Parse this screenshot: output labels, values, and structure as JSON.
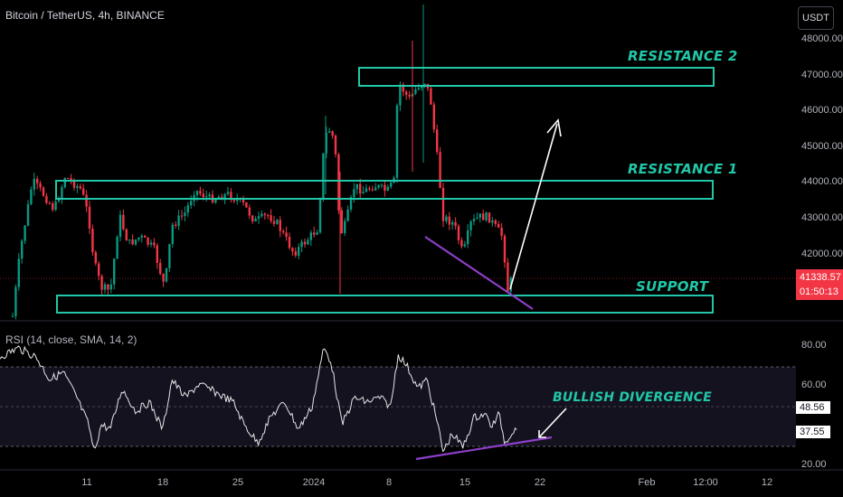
{
  "header": {
    "title": "Bitcoin / TetherUS, 4h, BINANCE",
    "currency_button": "USDT"
  },
  "price_axis": {
    "labels": [
      "48000.00",
      "47000.00",
      "46000.00",
      "45000.00",
      "44000.00",
      "43000.00",
      "42000.00"
    ],
    "current_price": "41338.57",
    "countdown": "01:50:13",
    "current_color": "#f23645"
  },
  "rsi_panel": {
    "title": "RSI (14, close, SMA, 14, 2)",
    "axis_labels": [
      "80.00",
      "60.00",
      "20.00"
    ],
    "rsi_value": "48.56",
    "ma_value": "37.55"
  },
  "time_axis": {
    "labels": [
      "11",
      "18",
      "25",
      "2024",
      "8",
      "15",
      "22",
      "Feb",
      "12:00",
      "12"
    ]
  },
  "annotations": {
    "resistance2": "RESISTANCE 2",
    "resistance1": "RESISTANCE 1",
    "support": "SUPPORT",
    "divergence": "BULLISH DIVERGENCE"
  },
  "colors": {
    "up": "#089981",
    "down": "#f23645",
    "zone": "#21c7a8",
    "divergence_line": "#8e3fc9",
    "rsi_line": "#e6e6e6"
  }
}
